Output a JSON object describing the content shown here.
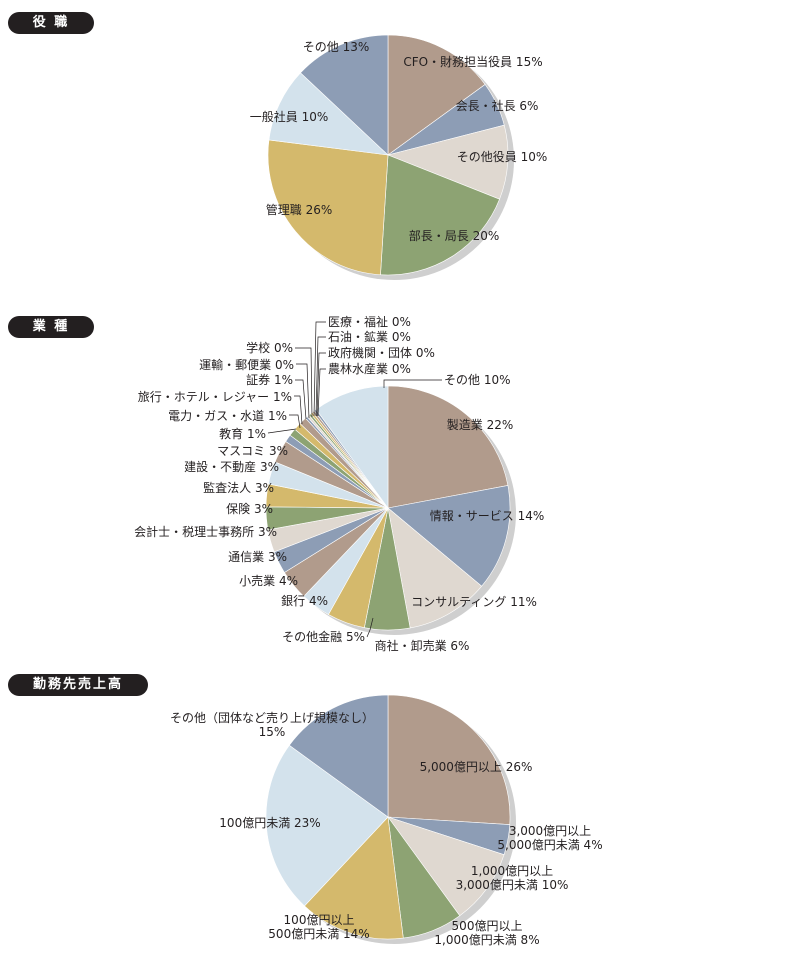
{
  "sections": [
    {
      "title": "役 職"
    },
    {
      "title": "業 種"
    },
    {
      "title": "勤務先売上高"
    }
  ],
  "chart_data": [
    {
      "type": "pie",
      "title": "役 職",
      "start": "12 o'clock",
      "direction": "clockwise",
      "slices": [
        {
          "label": "CFO・財務担当役員 15%",
          "value": 15,
          "color": "#b19b8c"
        },
        {
          "label": "会長・社長 6%",
          "value": 6,
          "color": "#8d9db5"
        },
        {
          "label": "その他役員 10%",
          "value": 10,
          "color": "#dfd8d0"
        },
        {
          "label": "部長・局長 20%",
          "value": 20,
          "color": "#8da373"
        },
        {
          "label": "管理職 26%",
          "value": 26,
          "color": "#d4b96c"
        },
        {
          "label": "一般社員 10%",
          "value": 10,
          "color": "#d3e2ec"
        },
        {
          "label": "その他 13%",
          "value": 13,
          "color": "#8d9db5"
        }
      ]
    },
    {
      "type": "pie",
      "title": "業 種",
      "start": "12 o'clock",
      "direction": "clockwise",
      "slices": [
        {
          "label": "製造業 22%",
          "value": 22,
          "color": "#b19b8c"
        },
        {
          "label": "情報・サービス 14%",
          "value": 14,
          "color": "#8d9db5"
        },
        {
          "label": "コンサルティング 11%",
          "value": 11,
          "color": "#dfd8d0"
        },
        {
          "label": "商社・卸売業 6%",
          "value": 6,
          "color": "#8da373"
        },
        {
          "label": "その他金融 5%",
          "value": 5,
          "color": "#d4b96c"
        },
        {
          "label": "銀行 4%",
          "value": 4,
          "color": "#d3e2ec"
        },
        {
          "label": "小売業 4%",
          "value": 4,
          "color": "#b19b8c"
        },
        {
          "label": "通信業 3%",
          "value": 3,
          "color": "#8d9db5"
        },
        {
          "label": "会計士・税理士事務所 3%",
          "value": 3,
          "color": "#dfd8d0"
        },
        {
          "label": "保険 3%",
          "value": 3,
          "color": "#8da373"
        },
        {
          "label": "監査法人 3%",
          "value": 3,
          "color": "#d4b96c"
        },
        {
          "label": "建設・不動産 3%",
          "value": 3,
          "color": "#d3e2ec"
        },
        {
          "label": "マスコミ 3%",
          "value": 3,
          "color": "#b19b8c"
        },
        {
          "label": "教育 1%",
          "value": 1,
          "color": "#8d9db5"
        },
        {
          "label": "電力・ガス・水道 1%",
          "value": 1,
          "color": "#8da373"
        },
        {
          "label": "旅行・ホテル・レジャー 1%",
          "value": 1,
          "color": "#d4b96c"
        },
        {
          "label": "証券 1%",
          "value": 1,
          "color": "#b19b8c"
        },
        {
          "label": "運輸・郵便業 0%",
          "value": 0.3,
          "color": "#8d9db5"
        },
        {
          "label": "学校 0%",
          "value": 0.3,
          "color": "#dfd8d0"
        },
        {
          "label": "医療・福祉 0%",
          "value": 0.3,
          "color": "#8da373"
        },
        {
          "label": "石油・鉱業 0%",
          "value": 0.3,
          "color": "#d4b96c"
        },
        {
          "label": "政府機関・団体 0%",
          "value": 0.3,
          "color": "#b19b8c"
        },
        {
          "label": "農林水産業 0%",
          "value": 0.3,
          "color": "#8d9db5"
        },
        {
          "label": "その他 10%",
          "value": 10,
          "color": "#d3e2ec"
        }
      ]
    },
    {
      "type": "pie",
      "title": "勤務先売上高",
      "start": "12 o'clock",
      "direction": "clockwise",
      "slices": [
        {
          "label": [
            "5,000億円以上 26%"
          ],
          "value": 26,
          "color": "#b19b8c"
        },
        {
          "label": [
            "3,000億円以上",
            "5,000億円未満 4%"
          ],
          "value": 4,
          "color": "#8d9db5"
        },
        {
          "label": [
            "1,000億円以上",
            "3,000億円未満 10%"
          ],
          "value": 10,
          "color": "#dfd8d0"
        },
        {
          "label": [
            "500億円以上",
            "1,000億円未満 8%"
          ],
          "value": 8,
          "color": "#8da373"
        },
        {
          "label": [
            "100億円以上",
            "500億円未満 14%"
          ],
          "value": 14,
          "color": "#d4b96c"
        },
        {
          "label": [
            "100億円未満 23%"
          ],
          "value": 23,
          "color": "#d3e2ec"
        },
        {
          "label": [
            "その他（団体など売り上げ規模なし）",
            "15%"
          ],
          "value": 15,
          "color": "#8d9db5"
        }
      ]
    }
  ]
}
